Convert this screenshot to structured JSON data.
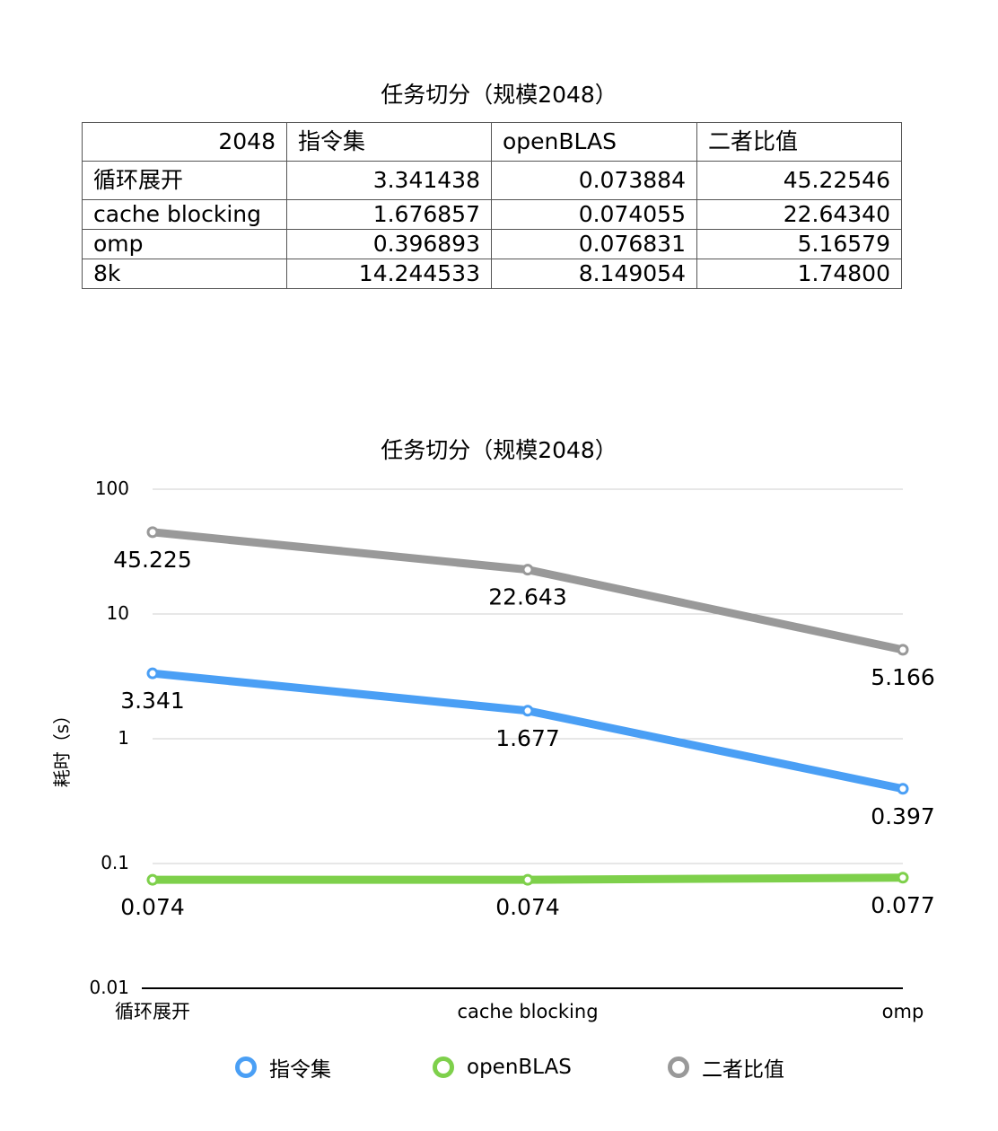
{
  "table": {
    "title": "任务切分（规模2048）",
    "header": [
      "2048",
      "指令集",
      "openBLAS",
      "二者比值"
    ],
    "rows": [
      [
        "循环展开",
        "3.341438",
        "0.073884",
        "45.22546"
      ],
      [
        "cache blocking",
        "1.676857",
        "0.074055",
        "22.64340"
      ],
      [
        "omp",
        "0.396893",
        "0.076831",
        "5.16579"
      ],
      [
        "8k",
        "14.244533",
        "8.149054",
        "1.74800"
      ]
    ]
  },
  "chart_data": {
    "type": "line",
    "title": "任务切分（规模2048）",
    "ylabel": "耗时（s）",
    "xlabel": "",
    "yscale": "log",
    "ylim": [
      0.01,
      100
    ],
    "yticks": [
      "0.01",
      "0.1",
      "1",
      "10",
      "100"
    ],
    "categories": [
      "循环展开",
      "cache blocking",
      "omp"
    ],
    "grid": true,
    "legend": "bottom",
    "series": [
      {
        "name": "指令集",
        "color": "#4a9ff5",
        "values": [
          3.341,
          1.677,
          0.397
        ],
        "labels": [
          "3.341",
          "1.677",
          "0.397"
        ]
      },
      {
        "name": "openBLAS",
        "color": "#7ed04b",
        "values": [
          0.074,
          0.074,
          0.077
        ],
        "labels": [
          "0.074",
          "0.074",
          "0.077"
        ]
      },
      {
        "name": "二者比值",
        "color": "#999999",
        "values": [
          45.225,
          22.643,
          5.166
        ],
        "labels": [
          "45.225",
          "22.643",
          "5.166"
        ]
      }
    ]
  }
}
